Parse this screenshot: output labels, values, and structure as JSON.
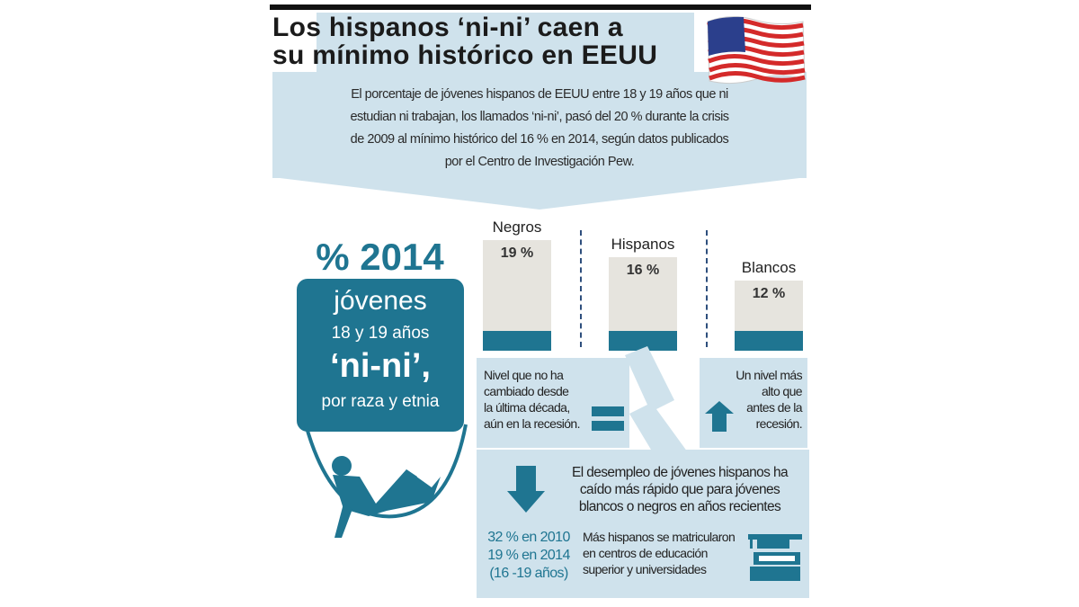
{
  "title": {
    "line1": "Los hispanos ‘ni-ni’ caen a",
    "line2": "su mínimo histórico en EEUU"
  },
  "intro": [
    "El porcentaje de jóvenes hispanos de EEUU entre 18 y 19 años que ni",
    "estudian ni trabajan, los llamados ‘ni-ni’, pasó del 20 % durante la crisis",
    "de 2009 al mínimo histórico del 16 % en 2014, según datos publicados",
    "por el Centro de Investigación Pew."
  ],
  "headline": "% 2014",
  "box": {
    "line1": "jóvenes",
    "line2": "18 y 19 años",
    "line3": "‘ni-ni’,",
    "line4": "por raza y etnia"
  },
  "chart_data": {
    "type": "bar",
    "title": "% 2014 jóvenes 18 y 19 años ‘ni-ni’, por raza y etnia",
    "categories": [
      "Negros",
      "Hispanos",
      "Blancos"
    ],
    "values": [
      19,
      16,
      12
    ],
    "value_labels": [
      "19 %",
      "16 %",
      "12 %"
    ],
    "unit": "%",
    "ylim": [
      0,
      20
    ],
    "grid": false
  },
  "callouts": {
    "negros": [
      "Nivel que no ha",
      "cambiado desde",
      "la última década,",
      "aún en la recesión."
    ],
    "blancos": [
      "Un nivel más",
      "alto que",
      "antes de la",
      "recesión."
    ],
    "desempleo": [
      "El desempleo de jóvenes hispanos ha",
      "caído más rápido que para jóvenes",
      "blancos o negros en años recientes"
    ],
    "stats": [
      "32 % en 2010",
      "19 % en 2014",
      "(16 -19 años)"
    ],
    "educacion": [
      "Más hispanos se matricularon",
      "en centros de educación",
      "superior y universidades"
    ]
  },
  "colors": {
    "accent": "#1f7591",
    "panel": "#cfe2ec",
    "bar": "#e6e4de"
  }
}
